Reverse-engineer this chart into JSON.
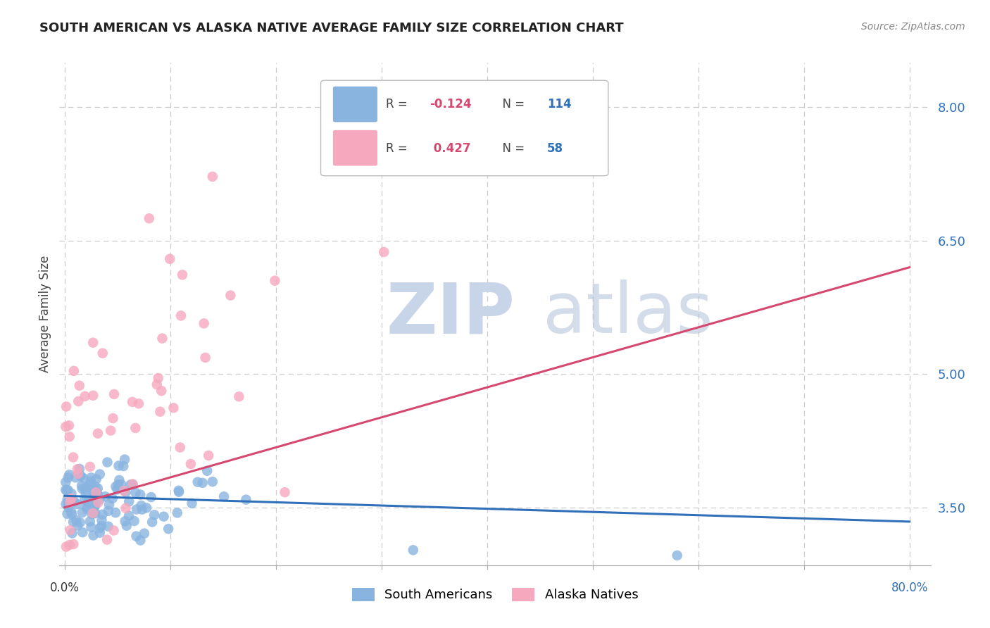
{
  "title": "SOUTH AMERICAN VS ALASKA NATIVE AVERAGE FAMILY SIZE CORRELATION CHART",
  "source": "Source: ZipAtlas.com",
  "ylabel": "Average Family Size",
  "yticks": [
    3.5,
    5.0,
    6.5,
    8.0
  ],
  "xticks": [
    0.0,
    0.1,
    0.2,
    0.3,
    0.4,
    0.5,
    0.6,
    0.7,
    0.8
  ],
  "xlim": [
    -0.005,
    0.82
  ],
  "ylim": [
    2.85,
    8.5
  ],
  "blue_R": -0.124,
  "blue_N": 114,
  "pink_R": 0.427,
  "pink_N": 58,
  "blue_color": "#89b4e0",
  "pink_color": "#f5a8be",
  "blue_line_color": "#3070b8",
  "pink_line_color": "#d64870",
  "background_color": "#ffffff",
  "grid_color": "#cccccc",
  "blue_trend_x": [
    0.0,
    0.8
  ],
  "blue_trend_y": [
    3.63,
    3.34
  ],
  "pink_trend_x": [
    0.0,
    0.8
  ],
  "pink_trend_y": [
    3.5,
    6.2
  ],
  "legend_label_blue": "South Americans",
  "legend_label_pink": "Alaska Natives",
  "watermark_zip_color": "#c8d4e8",
  "watermark_atlas_color": "#b0c0d8"
}
